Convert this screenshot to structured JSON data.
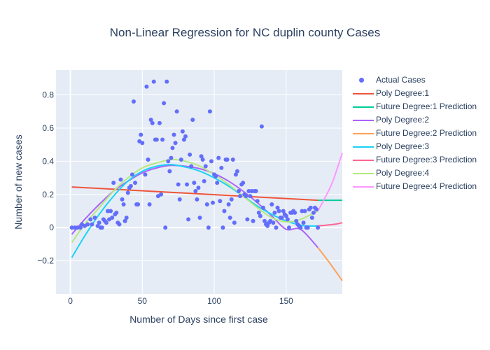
{
  "chart_data": {
    "type": "scatter",
    "title": "Non-Linear Regression for NC duplin county Cases",
    "xlabel": "Number of Days since first case",
    "ylabel": "Number of new cases",
    "xlim": [
      -10,
      189
    ],
    "ylim": [
      -0.4,
      0.95
    ],
    "x_ticks": [
      0,
      50,
      100,
      150
    ],
    "y_ticks": [
      -0.2,
      0,
      0.2,
      0.4,
      0.6,
      0.8
    ],
    "x_tick_labels": [
      "0",
      "50",
      "100",
      "150"
    ],
    "y_tick_labels": [
      "−0.2",
      "0",
      "0.2",
      "0.4",
      "0.6",
      "0.8"
    ],
    "grid": true,
    "legend_position": "right",
    "scatter": {
      "name": "Actual Cases",
      "color": "#636efa",
      "points": [
        [
          1,
          0
        ],
        [
          3,
          0
        ],
        [
          5,
          0
        ],
        [
          7,
          0
        ],
        [
          8,
          0.02
        ],
        [
          10,
          0.01
        ],
        [
          12,
          0.02
        ],
        [
          14,
          0.05
        ],
        [
          15,
          0.02
        ],
        [
          17,
          0.06
        ],
        [
          19,
          0.01
        ],
        [
          20,
          0.03
        ],
        [
          21,
          0
        ],
        [
          22,
          0
        ],
        [
          23,
          0.05
        ],
        [
          24,
          0.04
        ],
        [
          25,
          0.03
        ],
        [
          26,
          0.1
        ],
        [
          27,
          0.05
        ],
        [
          28,
          0.1
        ],
        [
          29,
          0.06
        ],
        [
          30,
          0.27
        ],
        [
          31,
          0.08
        ],
        [
          32,
          0.09
        ],
        [
          33,
          0.03
        ],
        [
          34,
          0.02
        ],
        [
          35,
          0.29
        ],
        [
          36,
          0.17
        ],
        [
          37,
          0.14
        ],
        [
          38,
          0.04
        ],
        [
          39,
          0.06
        ],
        [
          40,
          0.21
        ],
        [
          41,
          0.24
        ],
        [
          42,
          0.25
        ],
        [
          43,
          0.32
        ],
        [
          44,
          0.76
        ],
        [
          45,
          0.27
        ],
        [
          46,
          0.14
        ],
        [
          47,
          0.14
        ],
        [
          48,
          0.52
        ],
        [
          49,
          0.56
        ],
        [
          50,
          0.51
        ],
        [
          52,
          0.32
        ],
        [
          53,
          0.85
        ],
        [
          54,
          0.41
        ],
        [
          55,
          0.14
        ],
        [
          56,
          0.65
        ],
        [
          57,
          0.63
        ],
        [
          58,
          0.88
        ],
        [
          59,
          0.53
        ],
        [
          60,
          0.53
        ],
        [
          61,
          0.19
        ],
        [
          62,
          0.63
        ],
        [
          63,
          0.2
        ],
        [
          64,
          0.53
        ],
        [
          65,
          0.75
        ],
        [
          66,
          0
        ],
        [
          67,
          0.88
        ],
        [
          68,
          0.4
        ],
        [
          69,
          0.34
        ],
        [
          70,
          0.42
        ],
        [
          71,
          0.48
        ],
        [
          72,
          0.56
        ],
        [
          73,
          0.51
        ],
        [
          74,
          0.7
        ],
        [
          75,
          0.26
        ],
        [
          76,
          0.17
        ],
        [
          77,
          0.41
        ],
        [
          78,
          0.58
        ],
        [
          79,
          0.53
        ],
        [
          80,
          0.55
        ],
        [
          81,
          0.26
        ],
        [
          82,
          0.05
        ],
        [
          83,
          0.44
        ],
        [
          84,
          0.37
        ],
        [
          85,
          0.65
        ],
        [
          86,
          0.27
        ],
        [
          87,
          0.22
        ],
        [
          88,
          0.17
        ],
        [
          89,
          0.24
        ],
        [
          90,
          0.06
        ],
        [
          91,
          0.43
        ],
        [
          92,
          0.41
        ],
        [
          93,
          0.28
        ],
        [
          94,
          0.37
        ],
        [
          95,
          0.14
        ],
        [
          96,
          0
        ],
        [
          97,
          0.7
        ],
        [
          98,
          0.4
        ],
        [
          99,
          0.15
        ],
        [
          100,
          0.32
        ],
        [
          101,
          0.31
        ],
        [
          102,
          0.27
        ],
        [
          103,
          0.42
        ],
        [
          104,
          0.16
        ],
        [
          105,
          0.36
        ],
        [
          106,
          0
        ],
        [
          107,
          0.1
        ],
        [
          108,
          0.41
        ],
        [
          109,
          0.41
        ],
        [
          110,
          0.14
        ],
        [
          111,
          0.06
        ],
        [
          112,
          0.17
        ],
        [
          113,
          0.41
        ],
        [
          114,
          0.03
        ],
        [
          115,
          0.32
        ],
        [
          116,
          0.34
        ],
        [
          117,
          0.22
        ],
        [
          118,
          0.19
        ],
        [
          119,
          0.26
        ],
        [
          120,
          0.27
        ],
        [
          121,
          0.2
        ],
        [
          122,
          0.19
        ],
        [
          123,
          0.05
        ],
        [
          124,
          0.22
        ],
        [
          125,
          0.19
        ],
        [
          126,
          0.22
        ],
        [
          127,
          0.04
        ],
        [
          128,
          0.22
        ],
        [
          129,
          0.22
        ],
        [
          130,
          0.16
        ],
        [
          131,
          0.09
        ],
        [
          132,
          0.07
        ],
        [
          133,
          0.61
        ],
        [
          134,
          0.12
        ],
        [
          135,
          0.04
        ],
        [
          136,
          0.02
        ],
        [
          137,
          0.01
        ],
        [
          138,
          0.03
        ],
        [
          139,
          0.04
        ],
        [
          140,
          0.14
        ],
        [
          141,
          0.03
        ],
        [
          142,
          0.09
        ],
        [
          143,
          0
        ],
        [
          144,
          0.12
        ],
        [
          145,
          0.1
        ],
        [
          146,
          0.06
        ],
        [
          147,
          0.06
        ],
        [
          148,
          0.1
        ],
        [
          149,
          0.08
        ],
        [
          150,
          0.07
        ],
        [
          151,
          0.05
        ],
        [
          152,
          0
        ],
        [
          153,
          0.09
        ],
        [
          154,
          0.09
        ],
        [
          155,
          0.1
        ],
        [
          156,
          0.09
        ],
        [
          157,
          0.04
        ],
        [
          158,
          0.02
        ],
        [
          159,
          0.01
        ],
        [
          160,
          0
        ],
        [
          161,
          0.1
        ],
        [
          162,
          0.03
        ],
        [
          163,
          0.1
        ],
        [
          164,
          0
        ],
        [
          165,
          0
        ],
        [
          166,
          0.11
        ],
        [
          167,
          0.12
        ],
        [
          168,
          0.06
        ],
        [
          169,
          0.09
        ],
        [
          170,
          0.12
        ],
        [
          171,
          0.11
        ],
        [
          172,
          0
        ]
      ]
    },
    "series": [
      {
        "name": "Poly Degree:1",
        "color": "#ef553b",
        "x": [
          1,
          172
        ],
        "y": [
          0.245,
          0.165
        ]
      },
      {
        "name": "Future Degree:1 Prediction",
        "color": "#00cc96",
        "x": [
          172,
          189
        ],
        "y": [
          0.165,
          0.165
        ]
      },
      {
        "name": "Poly Degree:2",
        "color": "#ab63fa",
        "x": [
          1,
          10,
          20,
          30,
          40,
          50,
          60,
          70,
          80,
          90,
          100,
          110,
          120,
          130,
          140,
          150,
          160,
          172
        ],
        "y": [
          -0.04,
          0.05,
          0.14,
          0.22,
          0.28,
          0.33,
          0.36,
          0.375,
          0.37,
          0.355,
          0.325,
          0.28,
          0.22,
          0.15,
          0.07,
          -0.01,
          -0.01,
          -0.12
        ]
      },
      {
        "name": "Future Degree:2 Prediction",
        "color": "#ffa15a",
        "x": [
          172,
          180,
          189
        ],
        "y": [
          -0.12,
          -0.21,
          -0.32
        ]
      },
      {
        "name": "Poly Degree:3",
        "color": "#19d3f3",
        "x": [
          1,
          10,
          20,
          30,
          40,
          50,
          60,
          70,
          80,
          90,
          100,
          110,
          120,
          130,
          140,
          150,
          160,
          165,
          172
        ],
        "y": [
          -0.18,
          -0.05,
          0.08,
          0.19,
          0.28,
          0.34,
          0.37,
          0.38,
          0.365,
          0.34,
          0.3,
          0.25,
          0.19,
          0.13,
          0.08,
          0.04,
          0.015,
          0.01,
          0.01
        ]
      },
      {
        "name": "Future Degree:3 Prediction",
        "color": "#ff6692",
        "x": [
          172,
          178,
          185,
          189
        ],
        "y": [
          0.01,
          0.015,
          0.022,
          0.03
        ]
      },
      {
        "name": "Poly Degree:4",
        "color": "#b6e880",
        "x": [
          1,
          10,
          20,
          30,
          40,
          50,
          60,
          70,
          80,
          90,
          100,
          110,
          120,
          130,
          140,
          150,
          160,
          172
        ],
        "y": [
          -0.09,
          0.02,
          0.12,
          0.22,
          0.3,
          0.36,
          0.39,
          0.41,
          0.4,
          0.37,
          0.32,
          0.26,
          0.19,
          0.12,
          0.06,
          0.035,
          0.05,
          0.1
        ]
      },
      {
        "name": "Future Degree:4 Prediction",
        "color": "#ff97ff",
        "x": [
          172,
          177,
          182,
          186,
          189
        ],
        "y": [
          0.1,
          0.18,
          0.27,
          0.37,
          0.45
        ]
      }
    ]
  }
}
